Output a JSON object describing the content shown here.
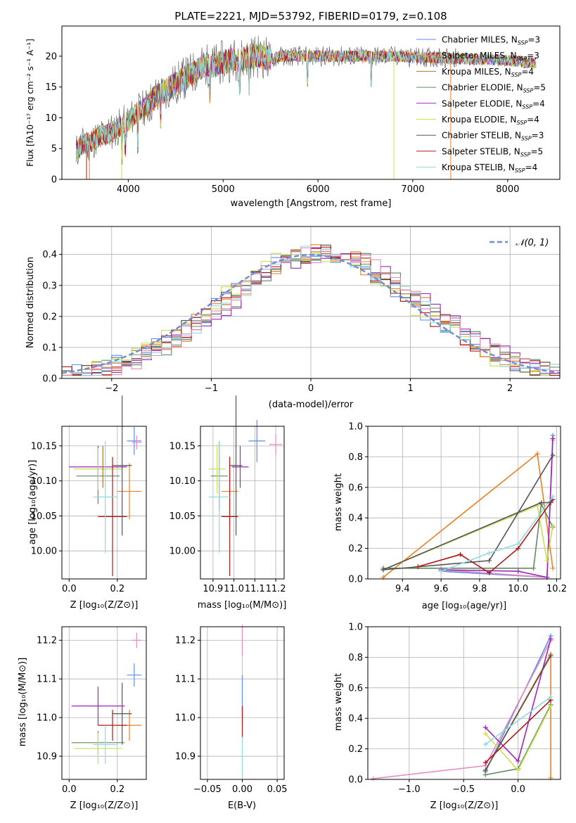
{
  "colors": {
    "c0": "#5b8ef0",
    "c1": "#ee7e21",
    "c2": "#b8752a",
    "c3": "#5f8a5f",
    "c4": "#a025b8",
    "c5": "#c8e04e",
    "c6": "#555555",
    "c7": "#b01818",
    "c8": "#8edcdf",
    "c9": "#e58bbf",
    "gauss": "#6e8fd8",
    "grid": "#b0b0b0"
  },
  "chart_data": [
    {
      "type": "line",
      "title": "PLATE=2221, MJD=53792, FIBERID=0179, z=0.108",
      "xlabel": "wavelength [Angstrom, rest frame]",
      "ylabel": "Flux [fλ10⁻¹⁷ erg cm⁻² s⁻¹ A⁻¹]",
      "xlim": [
        3300,
        8550
      ],
      "ylim": [
        0,
        24.9
      ],
      "xticks": [
        "4000",
        "5000",
        "6000",
        "7000",
        "8000"
      ],
      "yticks": [
        "0",
        "5",
        "10",
        "15",
        "20"
      ],
      "xtick_values": [
        4000,
        5000,
        6000,
        7000,
        8000
      ],
      "ytick_values": [
        0,
        5,
        10,
        15,
        20
      ],
      "grid": false,
      "legend_position": "lower-right",
      "legend": [
        {
          "model": "Chabrier MILES",
          "nssp": "3",
          "color": "c0"
        },
        {
          "model": "Salpeter MILES",
          "nssp": "3",
          "color": "c1"
        },
        {
          "model": "Kroupa MILES",
          "nssp": "4",
          "color": "c2"
        },
        {
          "model": "Chabrier ELODIE",
          "nssp": "5",
          "color": "c3"
        },
        {
          "model": "Salpeter ELODIE",
          "nssp": "4",
          "color": "c4"
        },
        {
          "model": "Kroupa ELODIE",
          "nssp": "4",
          "color": "c5"
        },
        {
          "model": "Chabrier STELIB",
          "nssp": "3",
          "color": "c6"
        },
        {
          "model": "Salpeter STELIB",
          "nssp": "5",
          "color": "c7"
        },
        {
          "model": "Kroupa STELIB",
          "nssp": "4",
          "color": "c8"
        }
      ],
      "nssp_prefix": "N",
      "nssp_subscript": "SSP",
      "envelope": {
        "x": [
          3450,
          3500,
          3600,
          3700,
          3800,
          3900,
          4000,
          4100,
          4200,
          4300,
          4400,
          4500,
          4600,
          4700,
          4800,
          4900,
          5000,
          5100,
          5200,
          5300,
          5400,
          5500,
          5600,
          5700,
          5800,
          5900,
          6000,
          6100,
          6200,
          6300,
          6400,
          6500,
          6600,
          6700,
          6800,
          6900,
          7000,
          7100,
          7200,
          7300,
          7400,
          7500,
          7600,
          7700,
          7800,
          7900,
          8000,
          8100,
          8200,
          8300
        ],
        "y": [
          4.5,
          5.5,
          6.0,
          7.0,
          7.5,
          8.5,
          9.5,
          11.0,
          12.0,
          13.5,
          14.5,
          15.5,
          16.5,
          17.5,
          18.5,
          18.5,
          19.0,
          19.5,
          19.5,
          20.0,
          20.0,
          19.5,
          20.0,
          20.0,
          20.0,
          20.0,
          20.0,
          20.0,
          20.0,
          20.0,
          20.0,
          20.0,
          20.0,
          20.0,
          20.0,
          20.0,
          19.8,
          19.8,
          19.8,
          19.8,
          19.6,
          19.6,
          19.5,
          19.5,
          19.5,
          19.3,
          19.3,
          19.2,
          19.0,
          18.8
        ]
      }
    },
    {
      "type": "line",
      "xlabel": "(data-model)/error",
      "ylabel": "Normed distribution",
      "xlim": [
        -2.5,
        2.5
      ],
      "ylim": [
        0,
        0.49
      ],
      "xticks": [
        "−2",
        "−1",
        "0",
        "1",
        "2"
      ],
      "xtick_values": [
        -2,
        -1,
        0,
        1,
        2
      ],
      "yticks": [
        "0.0",
        "0.1",
        "0.2",
        "0.3",
        "0.4"
      ],
      "ytick_values": [
        0,
        0.1,
        0.2,
        0.3,
        0.4
      ],
      "grid": true,
      "legend_position": "top-right",
      "legend": [
        {
          "label": "𝒩(0, 1)",
          "color": "gauss",
          "style": "dashed"
        }
      ],
      "bin_width": 0.1,
      "bin_start": -2.5
    },
    {
      "type": "scatter",
      "xlabel": "Z [log₁₀(Z/Z⊙)]",
      "ylabel": "age  [log₁₀(age/yr)]",
      "xlim": [
        -0.03,
        0.32
      ],
      "ylim": [
        9.96,
        10.178
      ],
      "xticks": [
        "0.0",
        "0.2"
      ],
      "xtick_values": [
        0,
        0.2
      ],
      "yticks": [
        "10.00",
        "10.05",
        "10.10",
        "10.15"
      ],
      "ytick_values": [
        10.0,
        10.05,
        10.1,
        10.15
      ],
      "grid": true,
      "points": [
        {
          "x": 0.27,
          "y": 10.157,
          "xerr": 0.03,
          "yerr": 0.02,
          "color": "c0"
        },
        {
          "x": 0.25,
          "y": 10.085,
          "xerr": 0.05,
          "yerr": 0.04,
          "color": "c1"
        },
        {
          "x": 0.28,
          "y": 10.155,
          "xerr": 0.02,
          "yerr": 0.01,
          "color": "c9"
        },
        {
          "x": 0.12,
          "y": 10.107,
          "xerr": 0.09,
          "yerr": 0.04,
          "color": "c3"
        },
        {
          "x": 0.12,
          "y": 10.12,
          "xerr": 0.12,
          "yerr": 0.03,
          "color": "c4"
        },
        {
          "x": 0.12,
          "y": 10.117,
          "xerr": 0.1,
          "yerr": 0.03,
          "color": "c5"
        },
        {
          "x": 0.22,
          "y": 10.122,
          "xerr": 0.04,
          "yerr": 0.1,
          "color": "c6"
        },
        {
          "x": 0.18,
          "y": 10.049,
          "xerr": 0.06,
          "yerr": 0.085,
          "color": "c7"
        },
        {
          "x": 0.15,
          "y": 10.077,
          "xerr": 0.05,
          "yerr": 0.08,
          "color": "c8"
        },
        {
          "x": 0.14,
          "y": 10.12,
          "xerr": 0.0,
          "yerr": 0.03,
          "color": "c2"
        }
      ]
    },
    {
      "type": "scatter",
      "xlabel": "mass [log₁₀(M/M⊙)]",
      "xlim": [
        10.84,
        11.24
      ],
      "ylim": [
        9.96,
        10.178
      ],
      "xticks": [
        "10.9",
        "11.0",
        "11.1",
        "11.2"
      ],
      "xtick_values": [
        10.9,
        11.0,
        11.1,
        11.2
      ],
      "yticks": [
        "10.00",
        "10.05",
        "10.10",
        "10.15"
      ],
      "ytick_values": [
        10.0,
        10.05,
        10.1,
        10.15
      ],
      "grid": true,
      "points": [
        {
          "x": 11.11,
          "y": 10.157,
          "xerr": 0.04,
          "yerr": 0.03,
          "color": "c0"
        },
        {
          "x": 10.98,
          "y": 10.085,
          "xerr": 0.04,
          "yerr": 0.05,
          "color": "c1"
        },
        {
          "x": 11.2,
          "y": 10.152,
          "xerr": 0.03,
          "yerr": 0.015,
          "color": "c9"
        },
        {
          "x": 10.93,
          "y": 10.107,
          "xerr": 0.04,
          "yerr": 0.05,
          "color": "c3"
        },
        {
          "x": 11.03,
          "y": 10.12,
          "xerr": 0.04,
          "yerr": 0.03,
          "color": "c4"
        },
        {
          "x": 10.92,
          "y": 10.117,
          "xerr": 0.04,
          "yerr": 0.035,
          "color": "c5"
        },
        {
          "x": 11.01,
          "y": 10.122,
          "xerr": 0.03,
          "yerr": 0.1,
          "color": "c6"
        },
        {
          "x": 10.98,
          "y": 10.049,
          "xerr": 0.04,
          "yerr": 0.085,
          "color": "c7"
        },
        {
          "x": 10.93,
          "y": 10.077,
          "xerr": 0.05,
          "yerr": 0.08,
          "color": "c8"
        }
      ]
    },
    {
      "type": "line",
      "xlabel": "age  [log₁₀(age/yr)]",
      "ylabel": "mass weight",
      "xlim": [
        9.22,
        10.22
      ],
      "ylim": [
        0,
        1
      ],
      "xticks": [
        "9.4",
        "9.6",
        "9.8",
        "10.0",
        "10.2"
      ],
      "xtick_values": [
        9.4,
        9.6,
        9.8,
        10.0,
        10.2
      ],
      "yticks": [
        "0.0",
        "0.2",
        "0.4",
        "0.6",
        "0.8",
        "1.0"
      ],
      "ytick_values": [
        0,
        0.2,
        0.4,
        0.6,
        0.8,
        1.0
      ],
      "grid": true,
      "series": [
        {
          "color": "c0",
          "x": [
            9.6,
            10.15,
            10.18
          ],
          "y": [
            0.05,
            0.01,
            0.94
          ]
        },
        {
          "color": "c1",
          "x": [
            9.3,
            10.1,
            10.18
          ],
          "y": [
            0.01,
            0.82,
            0.07
          ]
        },
        {
          "color": "c9",
          "x": [
            9.6,
            10.15,
            10.18
          ],
          "y": [
            0.06,
            0.01,
            0.91
          ]
        },
        {
          "color": "c3",
          "x": [
            9.3,
            10.08,
            10.12,
            10.18
          ],
          "y": [
            0.07,
            0.07,
            0.49,
            0.34
          ]
        },
        {
          "color": "c4",
          "x": [
            9.6,
            10.0,
            10.15,
            10.18
          ],
          "y": [
            0.06,
            0.05,
            0.01,
            0.92
          ]
        },
        {
          "color": "c5",
          "x": [
            9.3,
            10.1,
            10.15,
            10.18
          ],
          "y": [
            0.06,
            0.48,
            0.12,
            0.35
          ]
        },
        {
          "color": "c6",
          "x": [
            9.3,
            9.85,
            10.18
          ],
          "y": [
            0.06,
            0.12,
            0.81
          ]
        },
        {
          "color": "c7",
          "x": [
            9.48,
            9.7,
            9.85,
            10.0,
            10.18
          ],
          "y": [
            0.08,
            0.16,
            0.04,
            0.2,
            0.52
          ]
        },
        {
          "color": "c8",
          "x": [
            9.6,
            9.85,
            10.0,
            10.18
          ],
          "y": [
            0.05,
            0.17,
            0.23,
            0.54
          ]
        },
        {
          "color": "c6",
          "x": [
            9.3,
            10.12,
            10.17
          ],
          "y": [
            0.06,
            0.5,
            0.5
          ]
        }
      ]
    },
    {
      "type": "scatter",
      "xlabel": "Z [log₁₀(Z/Z⊙)]",
      "ylabel": "mass [log₁₀(M/M⊙)]",
      "xlim": [
        -0.03,
        0.32
      ],
      "ylim": [
        10.84,
        11.235
      ],
      "xticks": [
        "0.0",
        "0.2"
      ],
      "xtick_values": [
        0,
        0.2
      ],
      "yticks": [
        "10.9",
        "11.0",
        "11.1",
        "11.2"
      ],
      "ytick_values": [
        10.9,
        11.0,
        11.1,
        11.2
      ],
      "grid": true,
      "points": [
        {
          "x": 0.27,
          "y": 11.11,
          "xerr": 0.03,
          "yerr": 0.03,
          "color": "c0"
        },
        {
          "x": 0.25,
          "y": 10.98,
          "xerr": 0.05,
          "yerr": 0.04,
          "color": "c1"
        },
        {
          "x": 0.28,
          "y": 11.2,
          "xerr": 0.02,
          "yerr": 0.02,
          "color": "c9"
        },
        {
          "x": 0.12,
          "y": 10.935,
          "xerr": 0.11,
          "yerr": 0.03,
          "color": "c3"
        },
        {
          "x": 0.12,
          "y": 11.03,
          "xerr": 0.11,
          "yerr": 0.05,
          "color": "c4"
        },
        {
          "x": 0.12,
          "y": 10.92,
          "xerr": 0.1,
          "yerr": 0.04,
          "color": "c5"
        },
        {
          "x": 0.22,
          "y": 11.01,
          "xerr": 0.04,
          "yerr": 0.08,
          "color": "c6"
        },
        {
          "x": 0.18,
          "y": 10.98,
          "xerr": 0.06,
          "yerr": 0.04,
          "color": "c7"
        },
        {
          "x": 0.15,
          "y": 10.93,
          "xerr": 0.05,
          "yerr": 0.05,
          "color": "c8"
        }
      ]
    },
    {
      "type": "scatter",
      "xlabel": "E(B-V)",
      "xlim": [
        -0.06,
        0.06
      ],
      "ylim": [
        10.84,
        11.235
      ],
      "xticks": [
        "−0.05",
        "0.00",
        "0.05"
      ],
      "xtick_values": [
        -0.05,
        0,
        0.05
      ],
      "yticks": [
        "10.9",
        "11.0",
        "11.1",
        "11.2"
      ],
      "ytick_values": [
        10.9,
        11.0,
        11.1,
        11.2
      ],
      "grid": true,
      "points": [
        {
          "x": 0.0,
          "y": 11.2,
          "xerr": 0,
          "yerr": 0.04,
          "color": "c9"
        },
        {
          "x": 0.0,
          "y": 11.05,
          "xerr": 0,
          "yerr": 0.06,
          "color": "c0"
        },
        {
          "x": 0.0,
          "y": 10.99,
          "xerr": 0,
          "yerr": 0.04,
          "color": "c7"
        },
        {
          "x": 0.0,
          "y": 10.9,
          "xerr": 0,
          "yerr": 0.05,
          "color": "c8"
        }
      ]
    },
    {
      "type": "line",
      "xlabel": "Z [log₁₀(Z/Z⊙)]",
      "ylabel": "mass weight",
      "xlim": [
        -1.38,
        0.39
      ],
      "ylim": [
        0,
        1
      ],
      "xticks": [
        "−1.0",
        "−0.5",
        "0.0"
      ],
      "xtick_values": [
        -1.0,
        -0.5,
        0.0
      ],
      "yticks": [
        "0.0",
        "0.2",
        "0.4",
        "0.6",
        "0.8",
        "1.0"
      ],
      "ytick_values": [
        0,
        0.2,
        0.4,
        0.6,
        0.8,
        1.0
      ],
      "grid": true,
      "series": [
        {
          "color": "c0",
          "x": [
            -0.3,
            0.3
          ],
          "y": [
            0.05,
            0.94
          ]
        },
        {
          "color": "c1",
          "x": [
            -0.3,
            0.3,
            0.3
          ],
          "y": [
            0.06,
            0.82,
            0.01
          ]
        },
        {
          "color": "c9",
          "x": [
            -1.33,
            -0.3,
            0.3
          ],
          "y": [
            0.005,
            0.09,
            0.91
          ]
        },
        {
          "color": "c3",
          "x": [
            -0.3,
            0.0,
            0.3
          ],
          "y": [
            0.03,
            0.07,
            0.49
          ]
        },
        {
          "color": "c4",
          "x": [
            -0.3,
            0.0,
            0.3
          ],
          "y": [
            0.34,
            0.12,
            0.92
          ]
        },
        {
          "color": "c5",
          "x": [
            -0.3,
            0.0,
            0.3
          ],
          "y": [
            0.3,
            0.06,
            0.48
          ]
        },
        {
          "color": "c6",
          "x": [
            -0.3,
            0.3
          ],
          "y": [
            0.06,
            0.81
          ]
        },
        {
          "color": "c7",
          "x": [
            -0.3,
            0.3
          ],
          "y": [
            0.11,
            0.52
          ]
        },
        {
          "color": "c8",
          "x": [
            -0.3,
            0.3
          ],
          "y": [
            0.23,
            0.54
          ]
        }
      ]
    }
  ]
}
